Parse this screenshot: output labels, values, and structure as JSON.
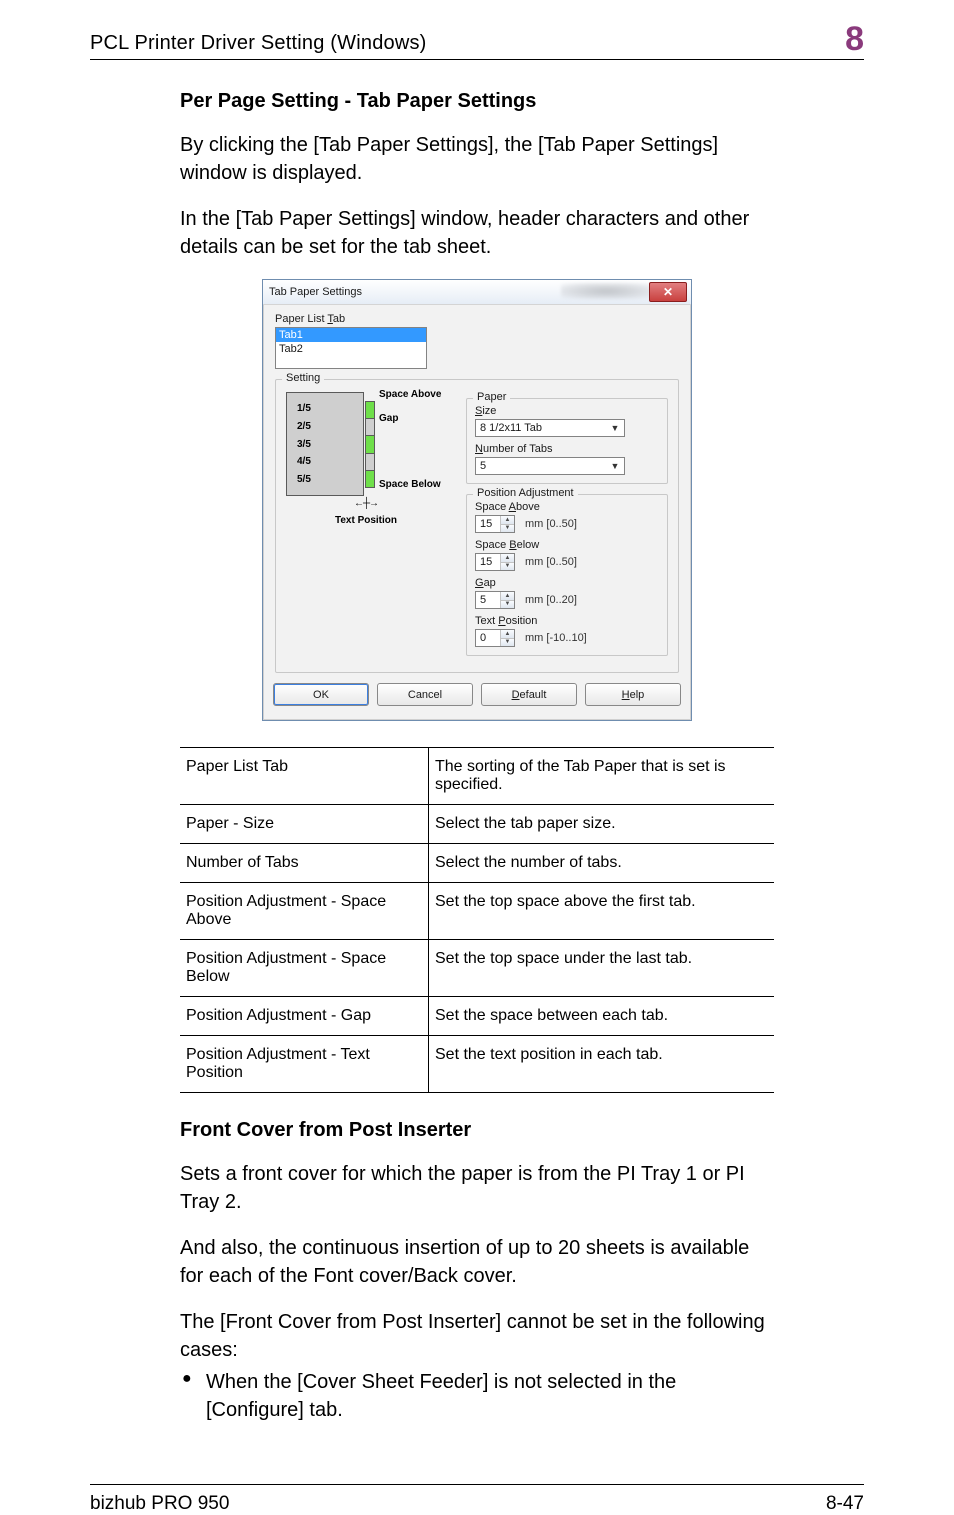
{
  "header": {
    "running_title": "PCL Printer Driver Setting (Windows)",
    "chapter_number": "8"
  },
  "section1": {
    "heading": "Per Page Setting - Tab Paper Settings",
    "p1": "By clicking the [Tab Paper Settings], the [Tab Paper Settings] window is displayed.",
    "p2": "In the [Tab Paper Settings] window, header characters and other details can be set for the tab sheet."
  },
  "dialog": {
    "title": "Tab Paper Settings",
    "paper_list_label": "Paper List Tab",
    "paper_list": {
      "items": [
        "Tab1",
        "Tab2"
      ],
      "selected_index": 0
    },
    "setting_legend": "Setting",
    "diagram": {
      "rows": [
        "1/5",
        "2/5",
        "3/5",
        "4/5",
        "5/5"
      ],
      "space_above": "Space Above",
      "gap": "Gap",
      "space_below": "Space Below",
      "text_position": "Text Position"
    },
    "paper_legend": "Paper",
    "size_label": "Size",
    "size_value": "8 1/2x11 Tab",
    "num_tabs_label": "Number of Tabs",
    "num_tabs_value": "5",
    "pos_adj_legend": "Position Adjustment",
    "space_above_label": "Space Above",
    "space_above_value": "15",
    "space_above_hint": "mm [0..50]",
    "space_below_label": "Space Below",
    "space_below_value": "15",
    "space_below_hint": "mm [0..50]",
    "gap_label": "Gap",
    "gap_value": "5",
    "gap_hint": "mm [0..20]",
    "text_pos_label": "Text Position",
    "text_pos_value": "0",
    "text_pos_hint": "mm [-10..10]",
    "buttons": {
      "ok": "OK",
      "cancel": "Cancel",
      "default": "Default",
      "help": "Help"
    }
  },
  "table": {
    "rows": [
      {
        "l": "Paper List Tab",
        "r": "The sorting of the Tab Paper that is set is specified."
      },
      {
        "l": "Paper - Size",
        "r": "Select the tab paper size."
      },
      {
        "l": "Number of Tabs",
        "r": "Select the number of tabs."
      },
      {
        "l": "Position Adjustment - Space Above",
        "r": "Set the top space above the first tab."
      },
      {
        "l": "Position Adjustment - Space Below",
        "r": "Set the top space under the last tab."
      },
      {
        "l": "Position Adjustment - Gap",
        "r": "Set the space between each tab."
      },
      {
        "l": "Position Adjustment - Text Position",
        "r": "Set the text position in each tab."
      }
    ]
  },
  "section2": {
    "heading": "Front Cover from Post Inserter",
    "p1": "Sets a front cover for which the paper is from the PI Tray 1 or PI Tray 2.",
    "p2": "And also, the continuous insertion of up to 20 sheets is available for each of the Font cover/Back cover.",
    "p3": "The [Front Cover from Post Inserter] cannot be set in the following cases:",
    "b1": "When the [Cover Sheet Feeder] is not selected in the [Configure] tab."
  },
  "footer": {
    "product": "bizhub PRO 950",
    "page": "8-47"
  },
  "colors": {
    "chapter_color": "#8a3a7c",
    "selection_blue": "#3399ff",
    "tab_green": "#6fdf4a"
  }
}
